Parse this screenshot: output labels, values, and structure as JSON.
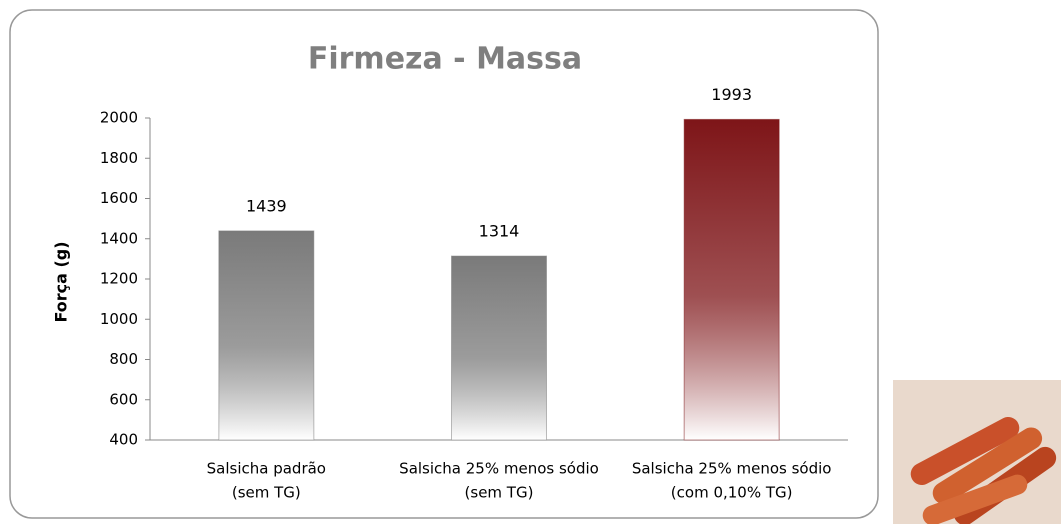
{
  "chart_data": {
    "type": "bar",
    "title": "Firmeza - Massa",
    "y_label": "Força (g)",
    "categories": [
      [
        "Salsicha padrão",
        "(sem TG)"
      ],
      [
        "Salsicha 25% menos sódio",
        "(sem TG)"
      ],
      [
        "Salsicha 25% menos sódio",
        "(com 0,10% TG)"
      ]
    ],
    "values": [
      1439,
      1314,
      1993
    ],
    "colors": [
      "#7a7a7a",
      "#7a7a7a",
      "#7e1518"
    ],
    "ylim": [
      400,
      2000
    ],
    "yticks": [
      400,
      600,
      800,
      1000,
      1200,
      1400,
      1600,
      1800,
      2000
    ],
    "grid": false
  }
}
